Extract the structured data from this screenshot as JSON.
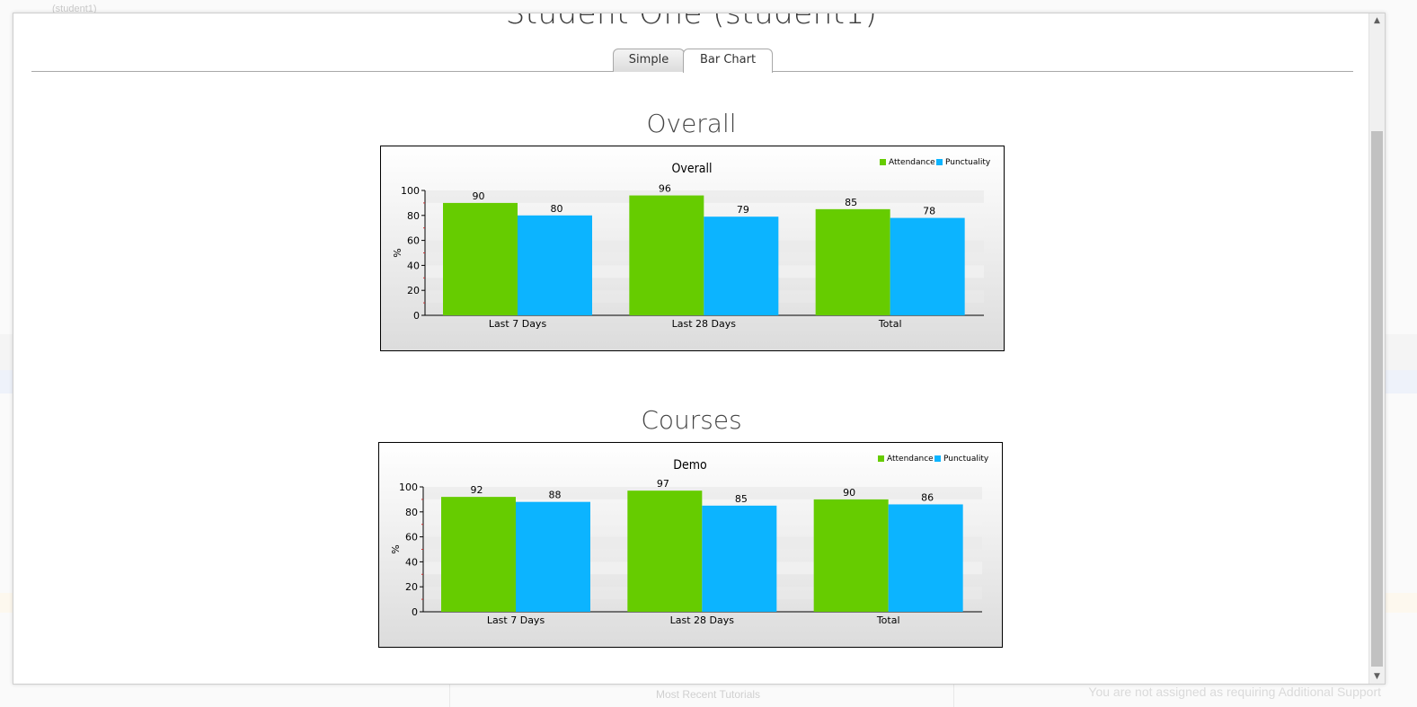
{
  "background": {
    "top_text": "(student1)",
    "footer_left": "Most Recent Tutorials",
    "footer_right": "You are not assigned as requiring Additional Support"
  },
  "modal": {
    "student_title": "Student One (student1)",
    "tabs": [
      {
        "label": "Simple",
        "active": false
      },
      {
        "label": "Bar Chart",
        "active": true
      }
    ],
    "sections": {
      "overall": "Overall",
      "courses": "Courses"
    },
    "scrollbar": {
      "up_icon": "chevron-up-icon",
      "down_icon": "chevron-down-icon"
    }
  },
  "colors": {
    "attendance": "#66cc00",
    "punctuality": "#0cb4ff"
  },
  "chart_data": [
    {
      "type": "bar",
      "title": "Overall",
      "categories": [
        "Last 7 Days",
        "Last 28 Days",
        "Total"
      ],
      "series": [
        {
          "name": "Attendance",
          "values": [
            90,
            96,
            85
          ]
        },
        {
          "name": "Punctuality",
          "values": [
            80,
            79,
            78
          ]
        }
      ],
      "ylabel": "%",
      "ylim": [
        0,
        100
      ],
      "yticks": [
        0,
        20,
        40,
        60,
        80,
        100
      ],
      "legend": "top-right"
    },
    {
      "type": "bar",
      "title": "Demo",
      "categories": [
        "Last 7 Days",
        "Last 28 Days",
        "Total"
      ],
      "series": [
        {
          "name": "Attendance",
          "values": [
            92,
            97,
            90
          ]
        },
        {
          "name": "Punctuality",
          "values": [
            88,
            85,
            86
          ]
        }
      ],
      "ylabel": "%",
      "ylim": [
        0,
        100
      ],
      "yticks": [
        0,
        20,
        40,
        60,
        80,
        100
      ],
      "legend": "top-right"
    }
  ]
}
